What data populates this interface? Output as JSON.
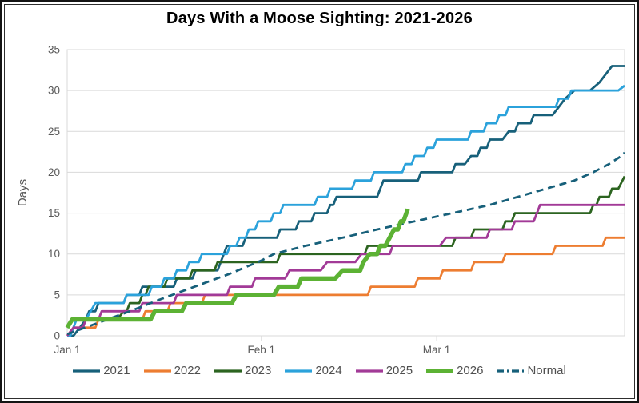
{
  "chart_data": {
    "type": "line",
    "title": "Days With a Moose Sighting: 2021-2026",
    "xlabel": "",
    "ylabel": "Days",
    "ylim": [
      0,
      35
    ],
    "ytick_step": 5,
    "xlim_days": [
      0,
      89
    ],
    "x_unit": "days since Jan 1",
    "xticks": [
      {
        "day": 0,
        "label": "Jan 1"
      },
      {
        "day": 31,
        "label": "Feb 1"
      },
      {
        "day": 59,
        "label": "Mar 1"
      }
    ],
    "grid": "horizontal",
    "legend_position": "bottom",
    "axis_color": "#d9d9d9",
    "tick_label_color": "#595959",
    "legend_label_color": "#4f4f4f",
    "series": [
      {
        "name": "2021",
        "color": "#17607A",
        "width": 2.8,
        "dash": null,
        "points": [
          [
            0,
            0
          ],
          [
            1,
            0
          ],
          [
            2,
            1
          ],
          [
            3,
            2
          ],
          [
            3.5,
            3
          ],
          [
            4.5,
            3
          ],
          [
            5,
            4
          ],
          [
            9,
            4
          ],
          [
            9.5,
            5
          ],
          [
            11.5,
            5
          ],
          [
            12,
            6
          ],
          [
            17,
            6
          ],
          [
            17.5,
            7
          ],
          [
            20,
            7
          ],
          [
            20.5,
            8
          ],
          [
            24,
            8
          ],
          [
            24.5,
            9
          ],
          [
            25,
            10
          ],
          [
            25.5,
            11
          ],
          [
            28,
            11
          ],
          [
            28.5,
            12
          ],
          [
            33.5,
            12
          ],
          [
            34,
            13
          ],
          [
            36.5,
            13
          ],
          [
            37,
            14
          ],
          [
            39,
            14
          ],
          [
            39.5,
            15
          ],
          [
            41.5,
            15
          ],
          [
            42,
            16
          ],
          [
            42.5,
            16
          ],
          [
            43,
            17
          ],
          [
            49.5,
            17
          ],
          [
            50,
            18
          ],
          [
            50.5,
            19
          ],
          [
            56,
            19
          ],
          [
            56.5,
            20
          ],
          [
            61.5,
            20
          ],
          [
            62,
            21
          ],
          [
            63.5,
            21
          ],
          [
            64.5,
            22
          ],
          [
            65.5,
            22
          ],
          [
            66,
            23
          ],
          [
            67,
            23
          ],
          [
            67.5,
            24
          ],
          [
            69.5,
            24
          ],
          [
            70.5,
            25
          ],
          [
            71.5,
            25
          ],
          [
            72,
            26
          ],
          [
            74,
            26
          ],
          [
            74.5,
            27
          ],
          [
            77.5,
            27
          ],
          [
            78.5,
            28
          ],
          [
            79.5,
            29
          ],
          [
            81,
            30
          ],
          [
            83.5,
            30
          ],
          [
            85,
            31
          ],
          [
            86,
            32
          ],
          [
            87,
            33
          ],
          [
            89,
            33
          ]
        ]
      },
      {
        "name": "2022",
        "color": "#ED7D31",
        "width": 2.8,
        "dash": null,
        "points": [
          [
            0,
            0
          ],
          [
            1,
            1
          ],
          [
            4.5,
            1
          ],
          [
            5,
            2
          ],
          [
            12,
            2
          ],
          [
            12.5,
            3
          ],
          [
            16,
            3
          ],
          [
            16.5,
            4
          ],
          [
            21.5,
            4
          ],
          [
            22,
            5
          ],
          [
            48,
            5
          ],
          [
            48.5,
            6
          ],
          [
            55.5,
            6
          ],
          [
            56,
            7
          ],
          [
            59.5,
            7
          ],
          [
            60,
            8
          ],
          [
            64.5,
            8
          ],
          [
            65,
            9
          ],
          [
            69.5,
            9
          ],
          [
            70,
            10
          ],
          [
            77.5,
            10
          ],
          [
            78,
            11
          ],
          [
            85.5,
            11
          ],
          [
            86,
            12
          ],
          [
            89,
            12
          ]
        ]
      },
      {
        "name": "2023",
        "color": "#2C6420",
        "width": 2.8,
        "dash": null,
        "points": [
          [
            0,
            1
          ],
          [
            1,
            2
          ],
          [
            8,
            2
          ],
          [
            9,
            3
          ],
          [
            9.5,
            3
          ],
          [
            10,
            4
          ],
          [
            11.5,
            4
          ],
          [
            12,
            5
          ],
          [
            12.5,
            5
          ],
          [
            13,
            6
          ],
          [
            15.5,
            6
          ],
          [
            16,
            7
          ],
          [
            19.5,
            7
          ],
          [
            20,
            8
          ],
          [
            23.5,
            8
          ],
          [
            24,
            9
          ],
          [
            33.5,
            9
          ],
          [
            34,
            10
          ],
          [
            47.5,
            10
          ],
          [
            48,
            11
          ],
          [
            61.5,
            11
          ],
          [
            62,
            12
          ],
          [
            64.5,
            12
          ],
          [
            65,
            13
          ],
          [
            69.5,
            13
          ],
          [
            70,
            14
          ],
          [
            71,
            14
          ],
          [
            71.5,
            15
          ],
          [
            83.5,
            15
          ],
          [
            84,
            16
          ],
          [
            84.5,
            16
          ],
          [
            85,
            17
          ],
          [
            86.5,
            17
          ],
          [
            87,
            18
          ],
          [
            88,
            18
          ],
          [
            89,
            19.5
          ]
        ]
      },
      {
        "name": "2024",
        "color": "#2BA2DB",
        "width": 2.8,
        "dash": null,
        "points": [
          [
            0,
            0
          ],
          [
            0.5,
            0
          ],
          [
            1.5,
            2
          ],
          [
            3,
            2
          ],
          [
            4.5,
            4
          ],
          [
            9,
            4
          ],
          [
            9.5,
            5
          ],
          [
            13,
            5
          ],
          [
            13.5,
            6
          ],
          [
            15,
            6
          ],
          [
            15.5,
            7
          ],
          [
            17,
            7
          ],
          [
            17.5,
            8
          ],
          [
            19,
            8
          ],
          [
            19.5,
            9
          ],
          [
            21,
            9
          ],
          [
            21.5,
            10
          ],
          [
            25.5,
            10
          ],
          [
            26,
            11
          ],
          [
            27,
            11
          ],
          [
            27.5,
            12
          ],
          [
            28.5,
            12
          ],
          [
            29,
            13
          ],
          [
            30,
            13
          ],
          [
            30.5,
            14
          ],
          [
            32.5,
            14
          ],
          [
            33,
            15
          ],
          [
            34,
            15
          ],
          [
            34.5,
            16
          ],
          [
            39.5,
            16
          ],
          [
            40,
            17
          ],
          [
            41.5,
            17
          ],
          [
            42,
            18
          ],
          [
            45.5,
            18
          ],
          [
            46,
            19
          ],
          [
            48.5,
            19
          ],
          [
            49,
            20
          ],
          [
            53.5,
            20
          ],
          [
            54,
            21
          ],
          [
            55,
            21
          ],
          [
            55.5,
            22
          ],
          [
            57,
            22
          ],
          [
            57.5,
            23
          ],
          [
            58.5,
            23
          ],
          [
            59,
            24
          ],
          [
            64,
            24
          ],
          [
            64.5,
            25
          ],
          [
            66.5,
            25
          ],
          [
            67,
            26
          ],
          [
            68.5,
            26
          ],
          [
            69,
            27
          ],
          [
            70,
            27
          ],
          [
            70.5,
            28
          ],
          [
            78,
            28
          ],
          [
            78.5,
            29
          ],
          [
            80,
            29
          ],
          [
            80.5,
            30
          ],
          [
            88,
            30
          ],
          [
            89,
            30.6
          ]
        ]
      },
      {
        "name": "2025",
        "color": "#A23A97",
        "width": 2.8,
        "dash": null,
        "points": [
          [
            0,
            0
          ],
          [
            1,
            1
          ],
          [
            2.5,
            1
          ],
          [
            3,
            2
          ],
          [
            5,
            2
          ],
          [
            5.5,
            3
          ],
          [
            11.5,
            3
          ],
          [
            12,
            4
          ],
          [
            17,
            4
          ],
          [
            17.5,
            5
          ],
          [
            25.5,
            5
          ],
          [
            26,
            6
          ],
          [
            29.5,
            6
          ],
          [
            30,
            7
          ],
          [
            34.8,
            7
          ],
          [
            35.5,
            8
          ],
          [
            40.5,
            8
          ],
          [
            41.5,
            9
          ],
          [
            46,
            9
          ],
          [
            47,
            10
          ],
          [
            51.5,
            10
          ],
          [
            52,
            11
          ],
          [
            59.5,
            11
          ],
          [
            60.5,
            12
          ],
          [
            67,
            12
          ],
          [
            67.5,
            13
          ],
          [
            71,
            13
          ],
          [
            71.5,
            14
          ],
          [
            74.5,
            14
          ],
          [
            75,
            15
          ],
          [
            75.5,
            16
          ],
          [
            89,
            16
          ]
        ]
      },
      {
        "name": "2026",
        "color": "#5CB234",
        "width": 5.5,
        "dash": null,
        "points": [
          [
            0,
            1
          ],
          [
            0.8,
            2
          ],
          [
            13.3,
            2
          ],
          [
            14,
            3
          ],
          [
            18.3,
            3
          ],
          [
            19,
            4
          ],
          [
            26.3,
            4
          ],
          [
            27,
            5
          ],
          [
            33,
            5
          ],
          [
            33.8,
            6
          ],
          [
            36.8,
            6
          ],
          [
            37.4,
            7
          ],
          [
            42.8,
            7
          ],
          [
            44,
            8
          ],
          [
            46.8,
            8
          ],
          [
            47.3,
            9
          ],
          [
            48.3,
            10
          ],
          [
            49.5,
            10
          ],
          [
            50,
            11
          ],
          [
            50.8,
            11
          ],
          [
            51.5,
            12
          ],
          [
            52.2,
            13
          ],
          [
            52.8,
            13
          ],
          [
            53.3,
            14
          ],
          [
            53.7,
            14
          ],
          [
            54.4,
            15.5
          ]
        ]
      },
      {
        "name": "Normal",
        "color": "#17607A",
        "width": 2.8,
        "dash": "9 6",
        "points": [
          [
            0,
            0.2
          ],
          [
            5,
            1.6
          ],
          [
            10,
            3
          ],
          [
            15,
            4.5
          ],
          [
            21,
            6.2
          ],
          [
            26,
            7.6
          ],
          [
            31,
            9.2
          ],
          [
            33,
            10
          ],
          [
            38,
            11
          ],
          [
            44,
            12
          ],
          [
            49.5,
            13
          ],
          [
            55.5,
            14
          ],
          [
            61.5,
            15
          ],
          [
            67.5,
            16
          ],
          [
            72,
            17
          ],
          [
            76.5,
            18
          ],
          [
            81,
            19
          ],
          [
            84,
            20
          ],
          [
            86.5,
            21
          ],
          [
            88.5,
            22
          ],
          [
            89,
            22.4
          ]
        ]
      }
    ]
  }
}
